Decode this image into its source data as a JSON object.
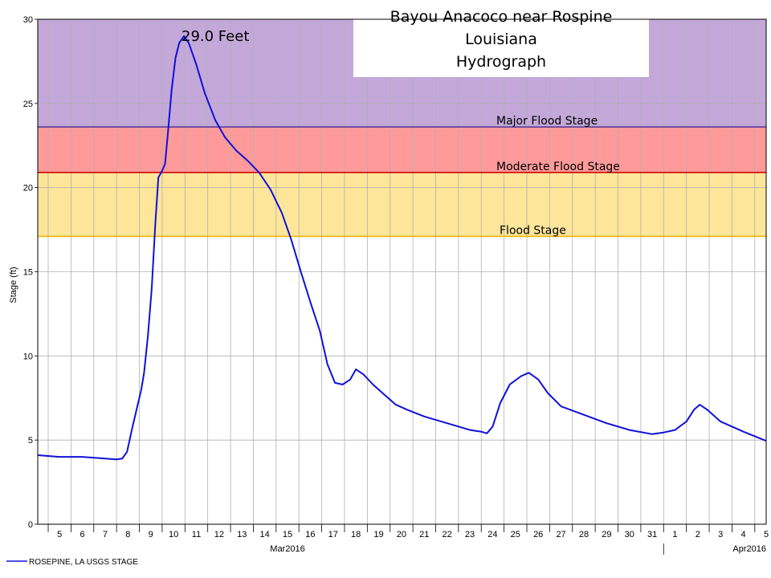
{
  "chart_data": {
    "type": "line",
    "title_lines": [
      "Bayou Anacoco near Rospine",
      "Louisiana",
      "Hydrograph"
    ],
    "ylabel": "Stage (ft)",
    "ylim": [
      0,
      30
    ],
    "y_ticks": [
      "0",
      "5",
      "10",
      "15",
      "20",
      "25",
      "30"
    ],
    "x_day_labels": [
      "5",
      "6",
      "7",
      "8",
      "9",
      "10",
      "11",
      "12",
      "13",
      "14",
      "15",
      "16",
      "17",
      "18",
      "19",
      "20",
      "21",
      "22",
      "23",
      "24",
      "25",
      "26",
      "27",
      "28",
      "29",
      "30",
      "31",
      "1",
      "2",
      "3",
      "4",
      "5"
    ],
    "month_labels": [
      "Mar2016",
      "Apr2016"
    ],
    "xlim": [
      "2016-03-04T13:00",
      "2016-04-05T12:00"
    ],
    "grid": true,
    "peak_annotation": "29.0 Feet",
    "stages": [
      {
        "name": "Major Flood Stage",
        "value": 23.6,
        "line_color": "#5b3c96",
        "band_color": "#c4a8da",
        "band_top": 30
      },
      {
        "name": "Moderate Flood Stage",
        "value": 20.9,
        "line_color": "#d40000",
        "band_color": "#ff9a9a",
        "band_top": 23.6
      },
      {
        "name": "Flood Stage",
        "value": 17.1,
        "line_color": "#f0b400",
        "band_color": "#fde59a",
        "band_top": 20.9
      }
    ],
    "series": [
      {
        "name": "ROSEPINE, LA USGS STAGE",
        "color": "#1010d8",
        "points": [
          [
            "2016-03-04T13:00",
            4.1
          ],
          [
            "2016-03-05T12:00",
            4.0
          ],
          [
            "2016-03-06T12:00",
            4.0
          ],
          [
            "2016-03-07T12:00",
            3.9
          ],
          [
            "2016-03-08T00:00",
            3.85
          ],
          [
            "2016-03-08T06:00",
            3.9
          ],
          [
            "2016-03-08T11:00",
            4.3
          ],
          [
            "2016-03-08T16:00",
            5.6
          ],
          [
            "2016-03-08T21:00",
            6.8
          ],
          [
            "2016-03-09T02:00",
            8.0
          ],
          [
            "2016-03-09T05:00",
            9.0
          ],
          [
            "2016-03-09T09:00",
            11.2
          ],
          [
            "2016-03-09T13:00",
            14.0
          ],
          [
            "2016-03-09T17:00",
            18.0
          ],
          [
            "2016-03-09T20:00",
            20.6
          ],
          [
            "2016-03-10T00:00",
            21.0
          ],
          [
            "2016-03-10T03:00",
            21.4
          ],
          [
            "2016-03-10T06:00",
            23.2
          ],
          [
            "2016-03-10T10:00",
            25.8
          ],
          [
            "2016-03-10T14:00",
            27.7
          ],
          [
            "2016-03-10T18:00",
            28.6
          ],
          [
            "2016-03-10T23:00",
            29.0
          ],
          [
            "2016-03-11T04:00",
            28.6
          ],
          [
            "2016-03-11T12:00",
            27.3
          ],
          [
            "2016-03-11T21:00",
            25.6
          ],
          [
            "2016-03-12T08:00",
            24.0
          ],
          [
            "2016-03-12T18:00",
            23.0
          ],
          [
            "2016-03-13T06:00",
            22.2
          ],
          [
            "2016-03-13T18:00",
            21.6
          ],
          [
            "2016-03-14T06:00",
            20.9
          ],
          [
            "2016-03-14T18:00",
            19.9
          ],
          [
            "2016-03-15T06:00",
            18.5
          ],
          [
            "2016-03-15T16:00",
            16.9
          ],
          [
            "2016-03-16T02:00",
            15.0
          ],
          [
            "2016-03-16T12:00",
            13.2
          ],
          [
            "2016-03-16T22:00",
            11.5
          ],
          [
            "2016-03-17T06:00",
            9.5
          ],
          [
            "2016-03-17T14:00",
            8.4
          ],
          [
            "2016-03-17T22:00",
            8.3
          ],
          [
            "2016-03-18T06:00",
            8.6
          ],
          [
            "2016-03-18T12:00",
            9.2
          ],
          [
            "2016-03-18T20:00",
            8.9
          ],
          [
            "2016-03-19T06:00",
            8.3
          ],
          [
            "2016-03-19T18:00",
            7.7
          ],
          [
            "2016-03-20T06:00",
            7.1
          ],
          [
            "2016-03-20T18:00",
            6.8
          ],
          [
            "2016-03-21T12:00",
            6.4
          ],
          [
            "2016-03-22T12:00",
            6.0
          ],
          [
            "2016-03-23T12:00",
            5.6
          ],
          [
            "2016-03-24T00:00",
            5.5
          ],
          [
            "2016-03-24T06:00",
            5.4
          ],
          [
            "2016-03-24T12:00",
            5.8
          ],
          [
            "2016-03-24T20:00",
            7.2
          ],
          [
            "2016-03-25T06:00",
            8.3
          ],
          [
            "2016-03-25T18:00",
            8.8
          ],
          [
            "2016-03-26T02:00",
            9.0
          ],
          [
            "2016-03-26T12:00",
            8.6
          ],
          [
            "2016-03-26T22:00",
            7.8
          ],
          [
            "2016-03-27T12:00",
            7.0
          ],
          [
            "2016-03-28T12:00",
            6.5
          ],
          [
            "2016-03-29T12:00",
            6.0
          ],
          [
            "2016-03-30T12:00",
            5.6
          ],
          [
            "2016-03-31T12:00",
            5.35
          ],
          [
            "2016-04-01T00:00",
            5.45
          ],
          [
            "2016-04-01T12:00",
            5.6
          ],
          [
            "2016-04-02T00:00",
            6.1
          ],
          [
            "2016-04-02T08:00",
            6.8
          ],
          [
            "2016-04-02T14:00",
            7.1
          ],
          [
            "2016-04-02T22:00",
            6.8
          ],
          [
            "2016-04-03T12:00",
            6.1
          ],
          [
            "2016-04-04T12:00",
            5.5
          ],
          [
            "2016-04-05T12:00",
            4.95
          ]
        ]
      }
    ]
  }
}
